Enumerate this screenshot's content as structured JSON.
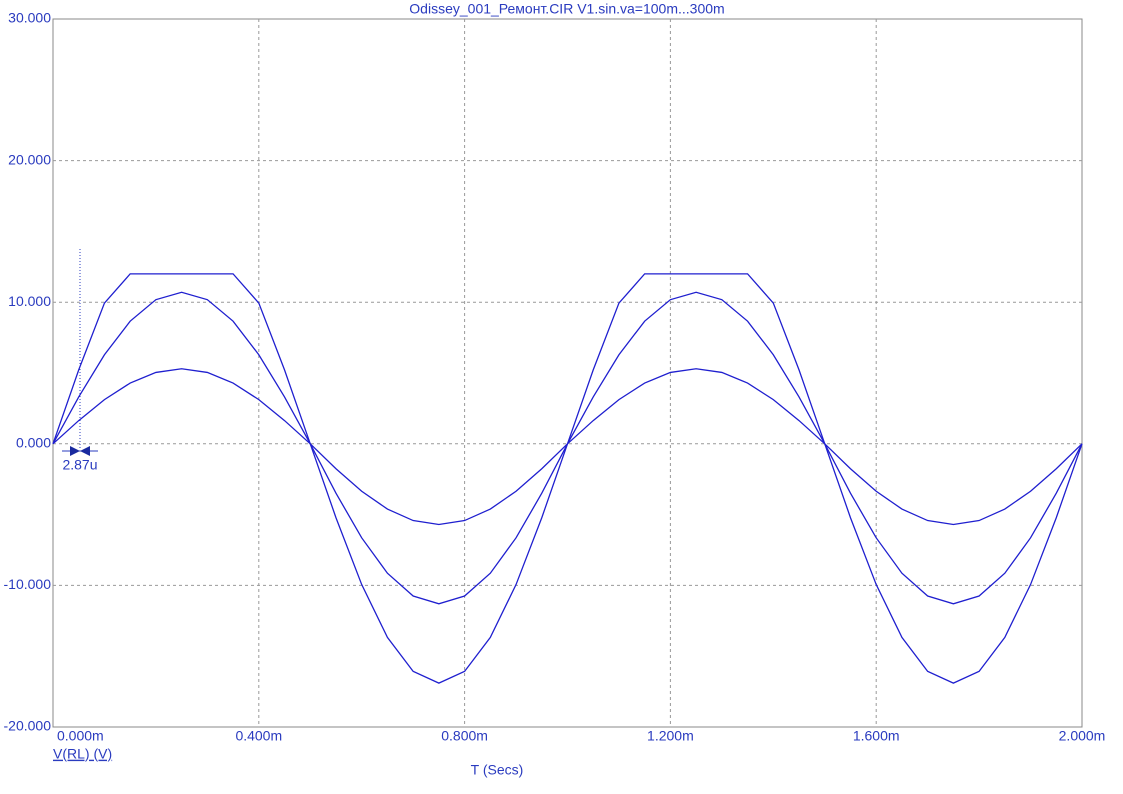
{
  "chart_data": {
    "type": "line",
    "title": "Odissey_001_Ремонт.CIR V1.sin.va=100m...300m",
    "x_label": "T (Secs)",
    "y_label": "V(RL) (V)",
    "annotations": [
      "2.87u"
    ],
    "grid": true,
    "xlim": [
      0,
      0.002
    ],
    "xticks": [
      {
        "value": 0,
        "label": "0.000m"
      },
      {
        "value": 0.0004,
        "label": "0.400m"
      },
      {
        "value": 0.0008,
        "label": "0.800m"
      },
      {
        "value": 0.0012,
        "label": "1.200m"
      },
      {
        "value": 0.0016,
        "label": "1.600m"
      },
      {
        "value": 0.002,
        "label": "2.000m"
      }
    ],
    "ylim": [
      -20,
      30
    ],
    "yticks": [
      {
        "value": -20,
        "label": "-20.000"
      },
      {
        "value": -10,
        "label": "-10.000"
      },
      {
        "value": 0,
        "label": "0.000"
      },
      {
        "value": 10,
        "label": "10.000"
      },
      {
        "value": 20,
        "label": "20.000"
      },
      {
        "value": 30,
        "label": "30.000"
      }
    ],
    "x": [
      0,
      5e-05,
      0.0001,
      0.00015,
      0.0002,
      0.00025,
      0.0003,
      0.00035,
      0.0004,
      0.00045,
      0.0005,
      0.00055,
      0.0006,
      0.00065,
      0.0007,
      0.00075,
      0.0008,
      0.00085,
      0.0009,
      0.00095,
      0.001,
      0.00105,
      0.0011,
      0.00115,
      0.0012,
      0.00125,
      0.0013,
      0.00135,
      0.0014,
      0.00145,
      0.0015,
      0.00155,
      0.0016,
      0.00165,
      0.0017,
      0.00175,
      0.0018,
      0.00185,
      0.0019,
      0.00195,
      0.002
    ],
    "series": [
      {
        "color": "#1f1fcf",
        "values": [
          0,
          1.64,
          3.12,
          4.29,
          5.04,
          5.3,
          5.04,
          4.29,
          3.12,
          1.64,
          0,
          -1.76,
          -3.35,
          -4.61,
          -5.42,
          -5.7,
          -5.42,
          -4.61,
          -3.35,
          -1.76,
          0,
          1.64,
          3.12,
          4.29,
          5.04,
          5.3,
          5.04,
          4.29,
          3.12,
          1.64,
          0,
          -1.76,
          -3.35,
          -4.61,
          -5.42,
          -5.7,
          -5.42,
          -4.61,
          -3.35,
          -1.76,
          0
        ]
      },
      {
        "color": "#1f1fcf",
        "values": [
          0,
          3.31,
          6.29,
          8.66,
          10.18,
          10.7,
          10.18,
          8.66,
          6.29,
          3.31,
          0,
          -3.49,
          -6.64,
          -9.14,
          -10.75,
          -11.3,
          -10.75,
          -9.14,
          -6.64,
          -3.49,
          0,
          3.31,
          6.29,
          8.66,
          10.18,
          10.7,
          10.18,
          8.66,
          6.29,
          3.31,
          0,
          -3.49,
          -6.64,
          -9.14,
          -10.75,
          -11.3,
          -10.75,
          -9.14,
          -6.64,
          -3.49,
          0
        ]
      },
      {
        "color": "#1f1fcf",
        "values": [
          0,
          5.22,
          9.94,
          12,
          12,
          12,
          12,
          12,
          9.94,
          5.22,
          0,
          -5.22,
          -9.94,
          -13.67,
          -16.07,
          -16.9,
          -16.07,
          -13.67,
          -9.94,
          -5.22,
          0,
          5.22,
          9.94,
          12,
          12,
          12,
          12,
          12,
          9.94,
          5.22,
          0,
          -5.22,
          -9.94,
          -13.67,
          -16.07,
          -16.9,
          -16.07,
          -13.67,
          -9.94,
          -5.22,
          0
        ]
      }
    ]
  }
}
